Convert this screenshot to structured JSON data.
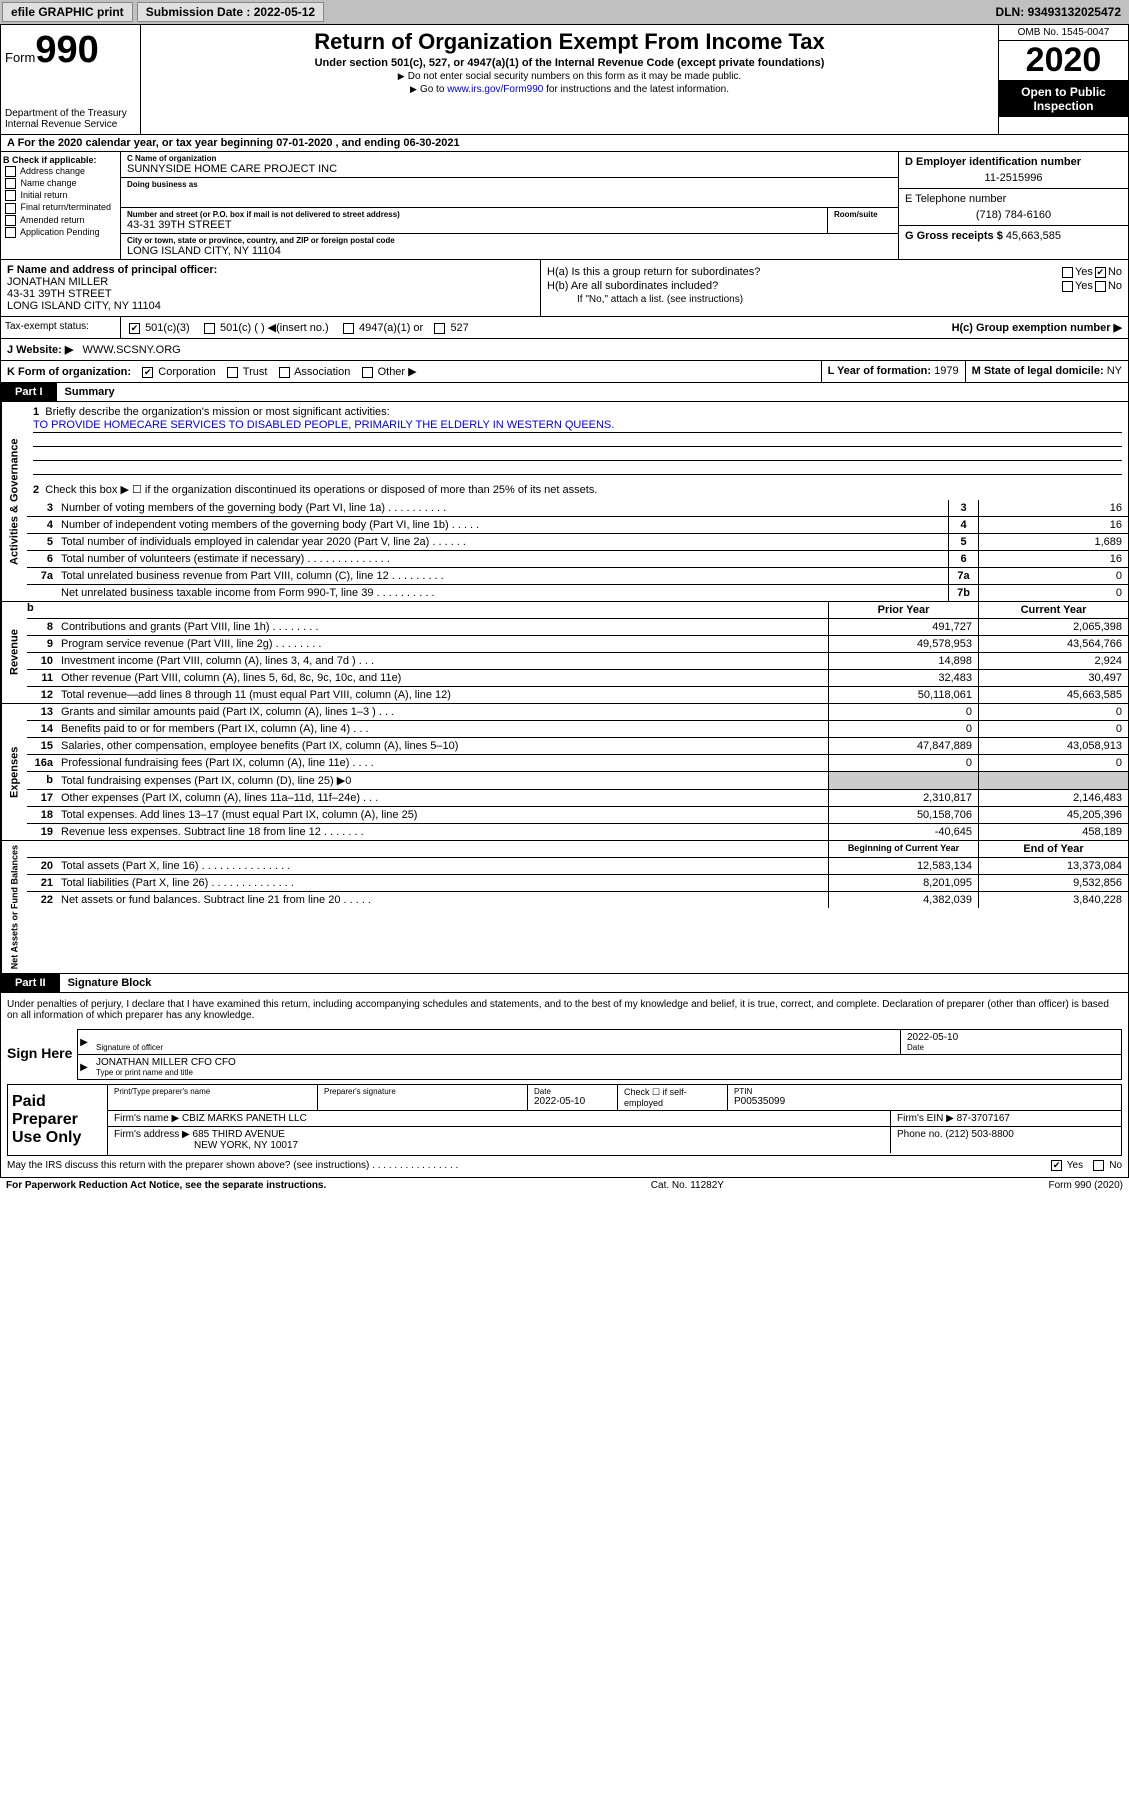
{
  "topbar": {
    "efile": "efile GRAPHIC print",
    "subdate_lbl": "Submission Date :",
    "subdate": "2022-05-12",
    "dln_lbl": "DLN:",
    "dln": "93493132025472"
  },
  "header": {
    "form": "Form",
    "num": "990",
    "dept": "Department of the Treasury\nInternal Revenue Service",
    "title": "Return of Organization Exempt From Income Tax",
    "sub": "Under section 501(c), 527, or 4947(a)(1) of the Internal Revenue Code (except private foundations)",
    "note1": "Do not enter social security numbers on this form as it may be made public.",
    "note2_a": "Go to ",
    "note2_link": "www.irs.gov/Form990",
    "note2_b": " for instructions and the latest information.",
    "omb": "OMB No. 1545-0047",
    "year": "2020",
    "otp": "Open to Public Inspection"
  },
  "rowA": "A For the 2020 calendar year, or tax year beginning 07-01-2020    , and ending 06-30-2021",
  "colB": {
    "hdr": "B Check if applicable:",
    "items": [
      "Address change",
      "Name change",
      "Initial return",
      "Final return/terminated",
      "Amended return",
      "Application Pending"
    ]
  },
  "colC": {
    "name_lbl": "C Name of organization",
    "name": "SUNNYSIDE HOME CARE PROJECT INC",
    "dba_lbl": "Doing business as",
    "addr_lbl": "Number and street (or P.O. box if mail is not delivered to street address)",
    "room_lbl": "Room/suite",
    "addr": "43-31 39TH STREET",
    "city_lbl": "City or town, state or province, country, and ZIP or foreign postal code",
    "city": "LONG ISLAND CITY, NY  11104"
  },
  "colD": {
    "ein_lbl": "D Employer identification number",
    "ein": "11-2515996",
    "tel_lbl": "E Telephone number",
    "tel": "(718) 784-6160",
    "gross_lbl": "G Gross receipts $",
    "gross": "45,663,585"
  },
  "taxex": {
    "lbl": "Tax-exempt status:",
    "opt1": "501(c)(3)",
    "opt2": "501(c) (  )",
    "opt2b": "(insert no.)",
    "opt3": "4947(a)(1) or",
    "opt4": "527"
  },
  "colF": {
    "lbl": "F Name and address of principal officer:",
    "name": "JONATHAN MILLER",
    "addr1": "43-31 39TH STREET",
    "addr2": "LONG ISLAND CITY, NY  11104"
  },
  "colH": {
    "ha": "H(a)  Is this a group return for subordinates?",
    "hb": "H(b)  Are all subordinates included?",
    "hb2": "If \"No,\" attach a list. (see instructions)",
    "hc": "H(c)  Group exemption number ▶",
    "yes": "Yes",
    "no": "No"
  },
  "website": {
    "lbl": "J  Website: ▶",
    "val": "WWW.SCSNY.ORG"
  },
  "kform": {
    "lbl": "K Form of organization:",
    "opts": [
      "Corporation",
      "Trust",
      "Association",
      "Other ▶"
    ],
    "l": "L Year of formation:",
    "lval": "1979",
    "m": "M State of legal domicile:",
    "mval": "NY"
  },
  "part1": {
    "tag": "Part I",
    "title": "Summary"
  },
  "gov": {
    "vtab": "Activities & Governance",
    "l1": "Briefly describe the organization's mission or most significant activities:",
    "l1val": "TO PROVIDE HOMECARE SERVICES TO DISABLED PEOPLE, PRIMARILY THE ELDERLY IN WESTERN QUEENS.",
    "l2": "Check this box ▶ ☐  if the organization discontinued its operations or disposed of more than 25% of its net assets.",
    "rows": [
      {
        "n": "3",
        "t": "Number of voting members of the governing body (Part VI, line 1a)  .  .  .  .  .  .  .  .  .  .",
        "c": "3",
        "v": "16"
      },
      {
        "n": "4",
        "t": "Number of independent voting members of the governing body (Part VI, line 1b)  .  .  .  .  .",
        "c": "4",
        "v": "16"
      },
      {
        "n": "5",
        "t": "Total number of individuals employed in calendar year 2020 (Part V, line 2a)  .  .  .  .  .  .",
        "c": "5",
        "v": "1,689"
      },
      {
        "n": "6",
        "t": "Total number of volunteers (estimate if necessary)  .  .  .  .  .  .  .  .  .  .  .  .  .  .",
        "c": "6",
        "v": "16"
      },
      {
        "n": "7a",
        "t": "Total unrelated business revenue from Part VIII, column (C), line 12  .  .  .  .  .  .  .  .  .",
        "c": "7a",
        "v": "0"
      },
      {
        "n": "",
        "t": "Net unrelated business taxable income from Form 990-T, line 39  .  .  .  .  .  .  .  .  .  .",
        "c": "7b",
        "v": "0"
      }
    ]
  },
  "rev": {
    "vtab": "Revenue",
    "hdr1": "Prior Year",
    "hdr2": "Current Year",
    "rows": [
      {
        "n": "8",
        "t": "Contributions and grants (Part VIII, line 1h)  .  .  .  .  .  .  .  .",
        "p": "491,727",
        "c": "2,065,398"
      },
      {
        "n": "9",
        "t": "Program service revenue (Part VIII, line 2g)  .  .  .  .  .  .  .  .",
        "p": "49,578,953",
        "c": "43,564,766"
      },
      {
        "n": "10",
        "t": "Investment income (Part VIII, column (A), lines 3, 4, and 7d )  .  .  .",
        "p": "14,898",
        "c": "2,924"
      },
      {
        "n": "11",
        "t": "Other revenue (Part VIII, column (A), lines 5, 6d, 8c, 9c, 10c, and 11e)",
        "p": "32,483",
        "c": "30,497"
      },
      {
        "n": "12",
        "t": "Total revenue—add lines 8 through 11 (must equal Part VIII, column (A), line 12)",
        "p": "50,118,061",
        "c": "45,663,585"
      }
    ]
  },
  "exp": {
    "vtab": "Expenses",
    "rows": [
      {
        "n": "13",
        "t": "Grants and similar amounts paid (Part IX, column (A), lines 1–3 )  .  .  .",
        "p": "0",
        "c": "0"
      },
      {
        "n": "14",
        "t": "Benefits paid to or for members (Part IX, column (A), line 4)  .  .  .",
        "p": "0",
        "c": "0"
      },
      {
        "n": "15",
        "t": "Salaries, other compensation, employee benefits (Part IX, column (A), lines 5–10)",
        "p": "47,847,889",
        "c": "43,058,913"
      },
      {
        "n": "16a",
        "t": "Professional fundraising fees (Part IX, column (A), line 11e)  .  .  .  .",
        "p": "0",
        "c": "0"
      },
      {
        "n": "b",
        "t": "Total fundraising expenses (Part IX, column (D), line 25) ▶0",
        "p": "",
        "c": "",
        "shade": true
      },
      {
        "n": "17",
        "t": "Other expenses (Part IX, column (A), lines 11a–11d, 11f–24e)  .  .  .",
        "p": "2,310,817",
        "c": "2,146,483"
      },
      {
        "n": "18",
        "t": "Total expenses. Add lines 13–17 (must equal Part IX, column (A), line 25)",
        "p": "50,158,706",
        "c": "45,205,396"
      },
      {
        "n": "19",
        "t": "Revenue less expenses. Subtract line 18 from line 12  .  .  .  .  .  .  .",
        "p": "-40,645",
        "c": "458,189"
      }
    ]
  },
  "net": {
    "vtab": "Net Assets or Fund Balances",
    "hdr1": "Beginning of Current Year",
    "hdr2": "End of Year",
    "rows": [
      {
        "n": "20",
        "t": "Total assets (Part X, line 16)  .  .  .  .  .  .  .  .  .  .  .  .  .  .  .",
        "p": "12,583,134",
        "c": "13,373,084"
      },
      {
        "n": "21",
        "t": "Total liabilities (Part X, line 26)  .  .  .  .  .  .  .  .  .  .  .  .  .  .",
        "p": "8,201,095",
        "c": "9,532,856"
      },
      {
        "n": "22",
        "t": "Net assets or fund balances. Subtract line 21 from line 20  .  .  .  .  .",
        "p": "4,382,039",
        "c": "3,840,228"
      }
    ]
  },
  "part2": {
    "tag": "Part II",
    "title": "Signature Block"
  },
  "sig": {
    "decl": "Under penalties of perjury, I declare that I have examined this return, including accompanying schedules and statements, and to the best of my knowledge and belief, it is true, correct, and complete. Declaration of preparer (other than officer) is based on all information of which preparer has any knowledge.",
    "here": "Sign Here",
    "off_lbl": "Signature of officer",
    "date_lbl": "Date",
    "date": "2022-05-10",
    "name": "JONATHAN MILLER CFO CFO",
    "name_lbl": "Type or print name and title"
  },
  "prep": {
    "left": "Paid Preparer Use Only",
    "h1": "Print/Type preparer's name",
    "h2": "Preparer's signature",
    "h3": "Date",
    "h3v": "2022-05-10",
    "h4": "Check ☐ if self-employed",
    "h5": "PTIN",
    "h5v": "P00535099",
    "firm_lbl": "Firm's name    ▶",
    "firm": "CBIZ MARKS PANETH LLC",
    "ein_lbl": "Firm's EIN ▶",
    "ein": "87-3707167",
    "addr_lbl": "Firm's address ▶",
    "addr1": "685 THIRD AVENUE",
    "addr2": "NEW YORK, NY  10017",
    "phone_lbl": "Phone no.",
    "phone": "(212) 503-8800"
  },
  "discuss": "May the IRS discuss this return with the preparer shown above? (see instructions)  .  .  .  .  .  .  .  .  .  .  .  .  .  .  .  .",
  "footer": {
    "l": "For Paperwork Reduction Act Notice, see the separate instructions.",
    "m": "Cat. No. 11282Y",
    "r": "Form 990 (2020)"
  }
}
